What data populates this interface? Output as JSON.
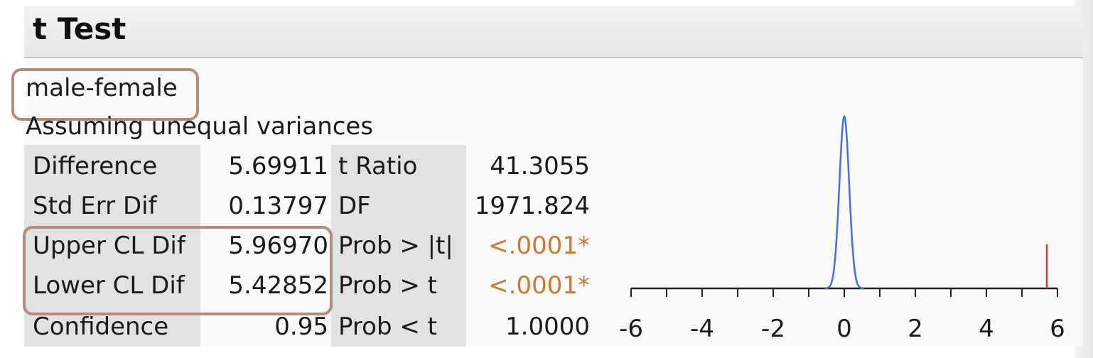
{
  "report": {
    "title": "t Test",
    "comparison": "male-female",
    "assumption": "Assuming unequal variances"
  },
  "stats_left": [
    {
      "label": "Difference",
      "value": "5.69911"
    },
    {
      "label": "Std Err Dif",
      "value": "0.13797"
    },
    {
      "label": "Upper CL Dif",
      "value": "5.96970"
    },
    {
      "label": "Lower CL Dif",
      "value": "5.42852"
    },
    {
      "label": "Confidence",
      "value": "0.95"
    }
  ],
  "stats_right": [
    {
      "label": "t Ratio",
      "value": "41.3055",
      "significant": false
    },
    {
      "label": "DF",
      "value": "1971.824",
      "significant": false
    },
    {
      "label": "Prob > |t|",
      "value": "<.0001*",
      "significant": true
    },
    {
      "label": "Prob > t",
      "value": "<.0001*",
      "significant": true
    },
    {
      "label": "Prob < t",
      "value": "1.0000",
      "significant": false
    }
  ],
  "colors": {
    "highlight": "#b88a78",
    "significant": "#cf7a2a",
    "distribution": "#3f6ff0",
    "marker": "#d6333a"
  },
  "chart_data": {
    "type": "line",
    "xlim": [
      -6,
      6
    ],
    "x_ticks": [
      "-6",
      "-4",
      "-2",
      "0",
      "2",
      "4",
      "6"
    ],
    "series": [
      {
        "distribution_center": 0,
        "distribution_spread": 0.138
      }
    ],
    "marker_x": 5.69911
  }
}
